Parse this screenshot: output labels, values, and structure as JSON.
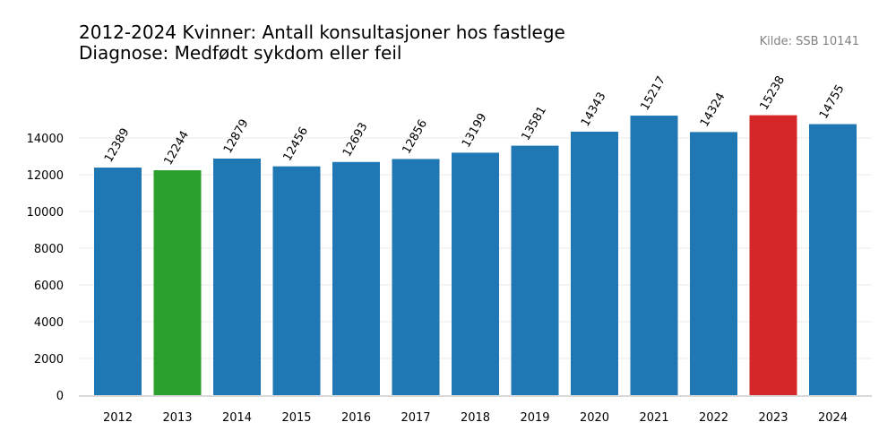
{
  "chart_data": {
    "type": "bar",
    "title": "2012-2024 Kvinner: Antall konsultasjoner hos fastlege",
    "subtitle": "Diagnose: Medfødt sykdom eller feil",
    "source": "Kilde: SSB 10141",
    "xlabel": "",
    "ylabel": "",
    "categories": [
      "2012",
      "2013",
      "2014",
      "2015",
      "2016",
      "2017",
      "2018",
      "2019",
      "2020",
      "2021",
      "2022",
      "2023",
      "2024"
    ],
    "values": [
      12389,
      12244,
      12879,
      12456,
      12693,
      12856,
      13199,
      13581,
      14343,
      15217,
      14324,
      15238,
      14755
    ],
    "bar_colors": [
      "#1f77b4",
      "#2ca02c",
      "#1f77b4",
      "#1f77b4",
      "#1f77b4",
      "#1f77b4",
      "#1f77b4",
      "#1f77b4",
      "#1f77b4",
      "#1f77b4",
      "#1f77b4",
      "#d62728",
      "#1f77b4"
    ],
    "yticks": [
      0,
      2000,
      4000,
      6000,
      8000,
      10000,
      12000,
      14000
    ],
    "ylim": [
      0,
      16000
    ],
    "grid": true,
    "legend": "none"
  }
}
